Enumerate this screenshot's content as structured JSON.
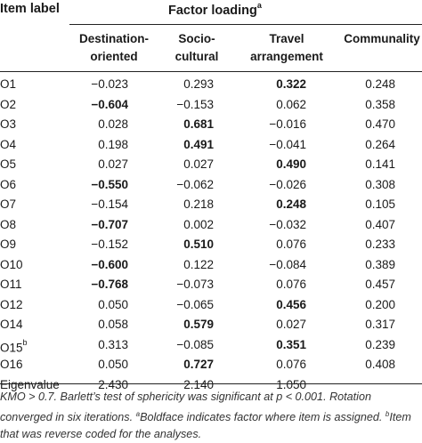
{
  "header": {
    "item_label": "Item label",
    "factor_loading": "Factor loading",
    "factor_loading_note": "a",
    "columns": [
      {
        "line1": "Destination-",
        "line2": "oriented"
      },
      {
        "line1": "Socio-",
        "line2": "cultural"
      },
      {
        "line1": "Travel",
        "line2": "arrangement"
      },
      {
        "line1": "Communality",
        "line2": ""
      }
    ]
  },
  "rows": [
    {
      "label": "O1",
      "sup": "",
      "values": [
        "−0.023",
        "0.293",
        "0.322",
        "0.248"
      ],
      "bold": [
        false,
        false,
        true,
        false
      ]
    },
    {
      "label": "O2",
      "sup": "",
      "values": [
        "−0.604",
        "−0.153",
        "0.062",
        "0.358"
      ],
      "bold": [
        true,
        false,
        false,
        false
      ]
    },
    {
      "label": "O3",
      "sup": "",
      "values": [
        "0.028",
        "0.681",
        "−0.016",
        "0.470"
      ],
      "bold": [
        false,
        true,
        false,
        false
      ]
    },
    {
      "label": "O4",
      "sup": "",
      "values": [
        "0.198",
        "0.491",
        "−0.041",
        "0.264"
      ],
      "bold": [
        false,
        true,
        false,
        false
      ]
    },
    {
      "label": "O5",
      "sup": "",
      "values": [
        "0.027",
        "0.027",
        "0.490",
        "0.141"
      ],
      "bold": [
        false,
        false,
        true,
        false
      ]
    },
    {
      "label": "O6",
      "sup": "",
      "values": [
        "−0.550",
        "−0.062",
        "−0.026",
        "0.308"
      ],
      "bold": [
        true,
        false,
        false,
        false
      ]
    },
    {
      "label": "O7",
      "sup": "",
      "values": [
        "−0.154",
        "0.218",
        "0.248",
        "0.105"
      ],
      "bold": [
        false,
        false,
        true,
        false
      ]
    },
    {
      "label": "O8",
      "sup": "",
      "values": [
        "−0.707",
        "0.002",
        "−0.032",
        "0.407"
      ],
      "bold": [
        true,
        false,
        false,
        false
      ]
    },
    {
      "label": "O9",
      "sup": "",
      "values": [
        "−0.152",
        "0.510",
        "0.076",
        "0.233"
      ],
      "bold": [
        false,
        true,
        false,
        false
      ]
    },
    {
      "label": "O10",
      "sup": "",
      "values": [
        "−0.600",
        "0.122",
        "−0.084",
        "0.389"
      ],
      "bold": [
        true,
        false,
        false,
        false
      ]
    },
    {
      "label": "O11",
      "sup": "",
      "values": [
        "−0.768",
        "−0.073",
        "0.076",
        "0.457"
      ],
      "bold": [
        true,
        false,
        false,
        false
      ]
    },
    {
      "label": "O12",
      "sup": "",
      "values": [
        "0.050",
        "−0.065",
        "0.456",
        "0.200"
      ],
      "bold": [
        false,
        false,
        true,
        false
      ]
    },
    {
      "label": "O14",
      "sup": "",
      "values": [
        "0.058",
        "0.579",
        "0.027",
        "0.317"
      ],
      "bold": [
        false,
        true,
        false,
        false
      ]
    },
    {
      "label": "O15",
      "sup": "b",
      "values": [
        "0.313",
        "−0.085",
        "0.351",
        "0.239"
      ],
      "bold": [
        false,
        false,
        true,
        false
      ]
    },
    {
      "label": "O16",
      "sup": "",
      "values": [
        "0.050",
        "0.727",
        "0.076",
        "0.408"
      ],
      "bold": [
        false,
        true,
        false,
        false
      ]
    },
    {
      "label": "Eigenvalue",
      "sup": "",
      "values": [
        "2.430",
        "2.140",
        "1.050",
        ""
      ],
      "bold": [
        false,
        false,
        false,
        false
      ]
    }
  ],
  "note": {
    "line1": "KMO > 0.7. Barlett’s test of sphericity was significant at p < 0.001. Rotation",
    "line2_a": "converged in six iterations. ",
    "line2_sup_a": "a",
    "line2_b": "Boldface indicates factor where item is assigned. ",
    "line2_sup_b": "b",
    "line2_c": "Item",
    "line3": "that was reverse coded for the analyses."
  }
}
